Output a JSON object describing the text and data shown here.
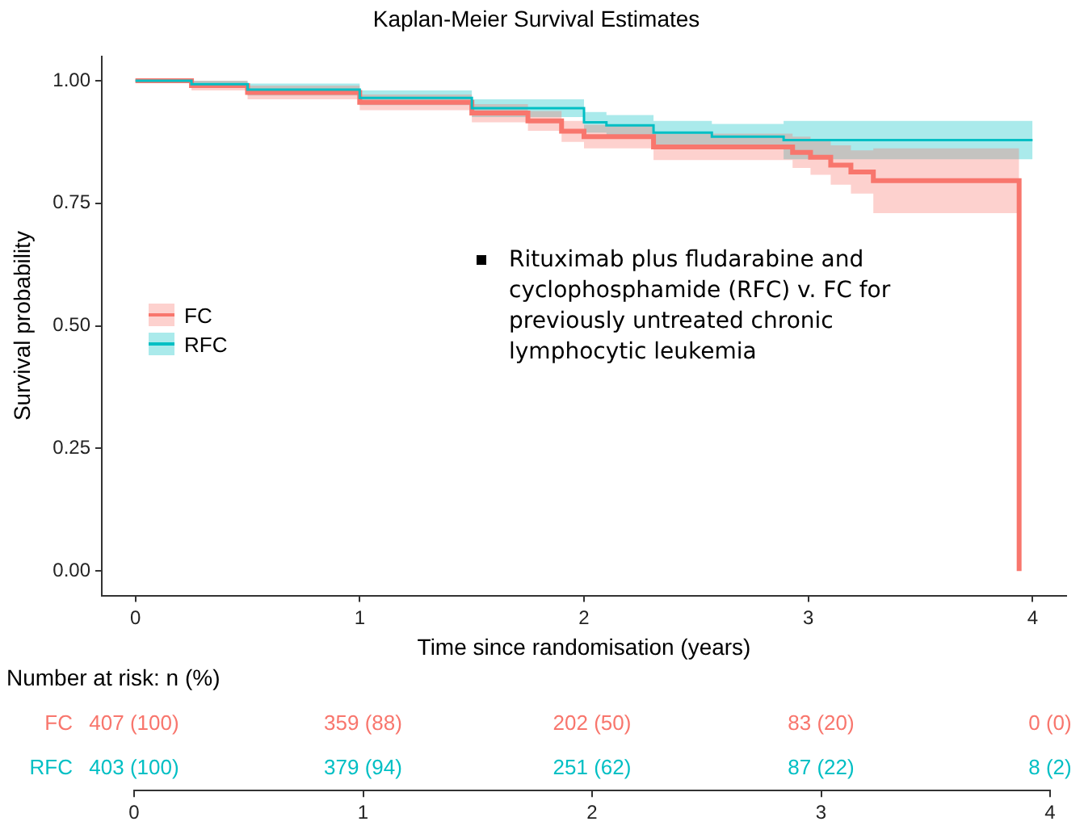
{
  "chart_data": [
    {
      "type": "step",
      "title": "Kaplan-Meier Survival Estimates",
      "xlabel": "Time since randomisation (years)",
      "ylabel": "Survival probability",
      "xlim": [
        -0.15,
        4.15
      ],
      "xticks": [
        0,
        1,
        2,
        3,
        4
      ],
      "ylim": [
        -0.05,
        1.05
      ],
      "yticks": [
        {
          "value": 0,
          "label": "0.00"
        },
        {
          "value": 0.25,
          "label": "0.25"
        },
        {
          "value": 0.5,
          "label": "0.50"
        },
        {
          "value": 0.75,
          "label": "0.75"
        },
        {
          "value": 1,
          "label": "1.00"
        }
      ],
      "grid": false,
      "legend": "left",
      "series": [
        {
          "name": "FC",
          "color": "#f8766d",
          "x": [
            0,
            0.25,
            0.5,
            1,
            1.5,
            1.75,
            1.9,
            2.0,
            2.31,
            2.93,
            3.01,
            3.1,
            3.19,
            3.29,
            3.94
          ],
          "values": [
            1,
            0.99,
            0.976,
            0.956,
            0.934,
            0.918,
            0.897,
            0.886,
            0.865,
            0.854,
            0.844,
            0.828,
            0.814,
            0.796,
            0
          ],
          "lower": [
            1,
            0.98,
            0.962,
            0.94,
            0.915,
            0.898,
            0.875,
            0.862,
            0.838,
            0.822,
            0.808,
            0.788,
            0.77,
            0.73,
            0.73
          ],
          "upper": [
            1,
            1,
            0.99,
            0.972,
            0.952,
            0.938,
            0.918,
            0.91,
            0.892,
            0.886,
            0.878,
            0.868,
            0.858,
            0.862,
            0.862
          ]
        },
        {
          "name": "RFC",
          "color": "#00bfc4",
          "x": [
            0,
            0.25,
            0.5,
            1,
            1.5,
            2.0,
            2.1,
            2.31,
            2.57,
            2.89,
            4.0
          ],
          "values": [
            1,
            0.993,
            0.982,
            0.965,
            0.944,
            0.915,
            0.909,
            0.894,
            0.886,
            0.879,
            0.879
          ],
          "lower": [
            1,
            0.985,
            0.97,
            0.95,
            0.926,
            0.894,
            0.887,
            0.87,
            0.86,
            0.84,
            0.84
          ],
          "upper": [
            1,
            1,
            0.994,
            0.98,
            0.962,
            0.936,
            0.93,
            0.918,
            0.912,
            0.918,
            0.918
          ]
        }
      ],
      "annotations": [
        "Rituximab plus fludarabine and cyclophosphamide (RFC) v. FC for previously untreated chronic lymphocytic leukemia"
      ]
    },
    {
      "type": "heatmap",
      "title": "Number at risk: n (%)",
      "categories": [
        "0",
        "1",
        "2",
        "3",
        "4"
      ],
      "y_categories": [
        "FC",
        "RFC"
      ],
      "colors": [
        "#f8766d",
        "#00bfc4"
      ],
      "cells": [
        [
          null,
          null,
          null,
          null,
          null
        ],
        [
          null,
          null,
          null,
          null,
          null
        ]
      ],
      "cell_labels": [
        [
          "407 (100)",
          "359 (88)",
          "202 (50)",
          "83 (20)",
          "0 (0)"
        ],
        [
          "403 (100)",
          "379 (94)",
          "251 (62)",
          "87 (22)",
          "8 (2)"
        ]
      ]
    }
  ]
}
